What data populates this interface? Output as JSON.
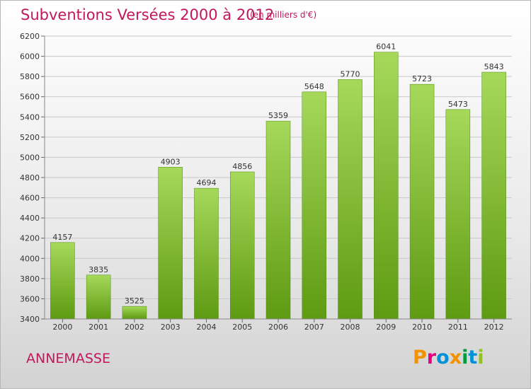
{
  "title": "Subventions Versées 2000 à 2012",
  "subtitle": "(en milliers d'€)",
  "city": "ANNEMASSE",
  "logo": {
    "text": "Proxiti",
    "letters": [
      {
        "ch": "P",
        "color": "#f39200"
      },
      {
        "ch": "r",
        "color": "#e6007e"
      },
      {
        "ch": "o",
        "color": "#0091d6"
      },
      {
        "ch": "x",
        "color": "#f39200"
      },
      {
        "ch": "i",
        "color": "#009a3e"
      },
      {
        "ch": "t",
        "color": "#0091d6"
      },
      {
        "ch": "i",
        "color": "#95c11f"
      }
    ]
  },
  "colors": {
    "accent": "#c2185b",
    "bar_light": "#a6d95a",
    "bar_dark": "#5e9a12",
    "grid": "#c8c8c8"
  },
  "chart_data": {
    "type": "bar",
    "title": "Subventions Versées 2000 à 2012",
    "subtitle": "(en milliers d'€)",
    "categories": [
      "2000",
      "2001",
      "2002",
      "2003",
      "2004",
      "2005",
      "2006",
      "2007",
      "2008",
      "2009",
      "2010",
      "2011",
      "2012"
    ],
    "values": [
      4157,
      3835,
      3525,
      4903,
      4694,
      4856,
      5359,
      5648,
      5770,
      6041,
      5723,
      5473,
      5843
    ],
    "ylim": [
      3400,
      6200
    ],
    "yticks": [
      3400,
      3600,
      3800,
      4000,
      4200,
      4400,
      4600,
      4800,
      5000,
      5200,
      5400,
      5600,
      5800,
      6000,
      6200
    ],
    "grid": true,
    "xlabel": "",
    "ylabel": ""
  }
}
